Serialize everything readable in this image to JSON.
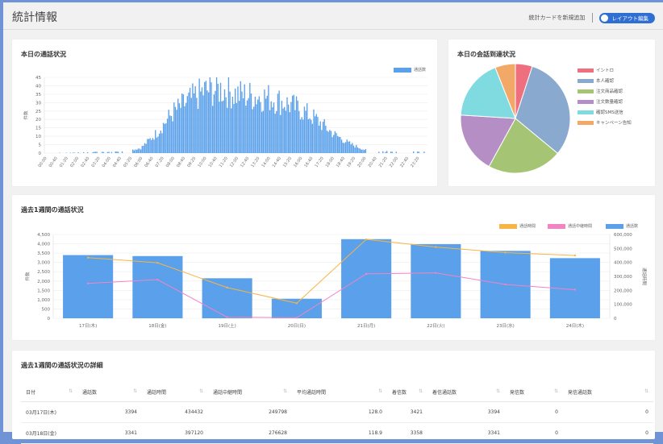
{
  "header": {
    "title": "統計情報",
    "add_card_label": "統計カードを新規追加",
    "layout_edit_label": "レイアウト編集"
  },
  "today_calls": {
    "title": "本日の通話状況",
    "legend": "通話数",
    "ylabel": "件数",
    "color": "#5aa0ea"
  },
  "today_reach": {
    "title": "本日の会話到達状況",
    "legend": [
      {
        "label": "イントロ",
        "color": "#ee6f7e"
      },
      {
        "label": "本人確認",
        "color": "#8aa9cf"
      },
      {
        "label": "注文商品確認",
        "color": "#a5c574"
      },
      {
        "label": "注文数量確認",
        "color": "#b48ec4"
      },
      {
        "label": "確認SMS送信",
        "color": "#7fdbe0"
      },
      {
        "label": "キャンペーン告知",
        "color": "#f2a968"
      }
    ]
  },
  "week_calls": {
    "title": "過去1週間の通話状況",
    "legend": [
      {
        "label": "通話時間",
        "color": "#f6b545"
      },
      {
        "label": "通話中継時間",
        "color": "#f384c4"
      },
      {
        "label": "通話数",
        "color": "#5aa0ea"
      }
    ],
    "ylabel_left": "件数",
    "ylabel_right": "通話時間"
  },
  "week_detail": {
    "title": "過去1週間の通話状況の詳細",
    "columns": [
      "日付",
      "通話数",
      "通話時間",
      "通話中継時間",
      "平均通話時間",
      "着信数",
      "着信通話数",
      "発信数",
      "発信通話数"
    ],
    "rows": [
      [
        "03月17日(木)",
        "3394",
        "434432",
        "249798",
        "128.0",
        "3421",
        "3394",
        "0",
        "0"
      ],
      [
        "03月18日(金)",
        "3341",
        "397120",
        "276628",
        "118.9",
        "3358",
        "3341",
        "0",
        "0"
      ]
    ]
  },
  "chart_data": [
    {
      "type": "bar",
      "title": "本日の通話状況",
      "ylabel": "件数",
      "ylim": [
        0,
        45
      ],
      "yticks": [
        0,
        5,
        10,
        15,
        20,
        25,
        30,
        35,
        40,
        45
      ],
      "xticks": [
        "00:00",
        "00:40",
        "01:20",
        "02:00",
        "02:40",
        "03:20",
        "04:00",
        "04:40",
        "05:20",
        "06:00",
        "06:40",
        "07:20",
        "08:00",
        "08:40",
        "09:20",
        "10:00",
        "10:40",
        "11:20",
        "12:00",
        "12:40",
        "13:20",
        "14:00",
        "14:40",
        "15:20",
        "16:00",
        "16:40",
        "17:20",
        "18:00",
        "18:40",
        "19:20",
        "20:00",
        "20:40",
        "21:20",
        "22:00",
        "22:40",
        "23:20"
      ],
      "series": [
        {
          "name": "通話数"
        }
      ],
      "profile": [
        {
          "time": "00:00",
          "value": 0
        },
        {
          "time": "05:00",
          "value": 1
        },
        {
          "time": "06:00",
          "value": 3
        },
        {
          "time": "07:00",
          "value": 12
        },
        {
          "time": "08:00",
          "value": 24
        },
        {
          "time": "09:00",
          "value": 31
        },
        {
          "time": "10:00",
          "value": 37
        },
        {
          "time": "11:00",
          "value": 38
        },
        {
          "time": "12:00",
          "value": 35
        },
        {
          "time": "13:00",
          "value": 34
        },
        {
          "time": "14:00",
          "value": 33
        },
        {
          "time": "15:00",
          "value": 30
        },
        {
          "time": "16:00",
          "value": 26
        },
        {
          "time": "17:00",
          "value": 20
        },
        {
          "time": "18:00",
          "value": 12
        },
        {
          "time": "19:00",
          "value": 6
        },
        {
          "time": "20:00",
          "value": 2
        },
        {
          "time": "21:00",
          "value": 1
        },
        {
          "time": "23:59",
          "value": 1
        }
      ],
      "grid": true,
      "legend_position": "top-right"
    },
    {
      "type": "pie",
      "title": "本日の会話到達状況",
      "labels": [
        "イントロ",
        "本人確認",
        "注文商品確認",
        "注文数量確認",
        "確認SMS送信",
        "キャンペーン告知"
      ],
      "values": [
        5,
        31,
        22,
        18,
        18,
        6
      ],
      "legend_position": "right"
    },
    {
      "type": "bar",
      "title": "過去1週間の通話状況",
      "categories": [
        "17日(木)",
        "18日(金)",
        "19日(土)",
        "20日(日)",
        "21日(月)",
        "22日(火)",
        "23日(水)",
        "24日(木)"
      ],
      "ylim": [
        0,
        4500
      ],
      "yticks": [
        "0",
        "500",
        "1,000",
        "1,500",
        "2,000",
        "2,500",
        "3,000",
        "3,500",
        "4,000",
        "4,500"
      ],
      "y2lim": [
        0,
        600000
      ],
      "y2ticks": [
        "0",
        "100,000",
        "200,000",
        "300,000",
        "400,000",
        "500,000",
        "600,000"
      ],
      "ylabel": "件数",
      "y2label": "通話時間",
      "series": [
        {
          "name": "通話数",
          "type": "bar",
          "axis": "left",
          "values": [
            3394,
            3341,
            2150,
            1050,
            4250,
            3980,
            3620,
            3230
          ]
        },
        {
          "name": "通話時間",
          "type": "line",
          "axis": "right",
          "values": [
            434432,
            397120,
            220000,
            108000,
            565000,
            510000,
            470000,
            450000
          ]
        },
        {
          "name": "通話中継時間",
          "type": "line",
          "axis": "right",
          "values": [
            249798,
            276628,
            8000,
            4000,
            318000,
            325000,
            242000,
            205000
          ]
        }
      ],
      "grid": true,
      "legend_position": "top-right"
    }
  ]
}
